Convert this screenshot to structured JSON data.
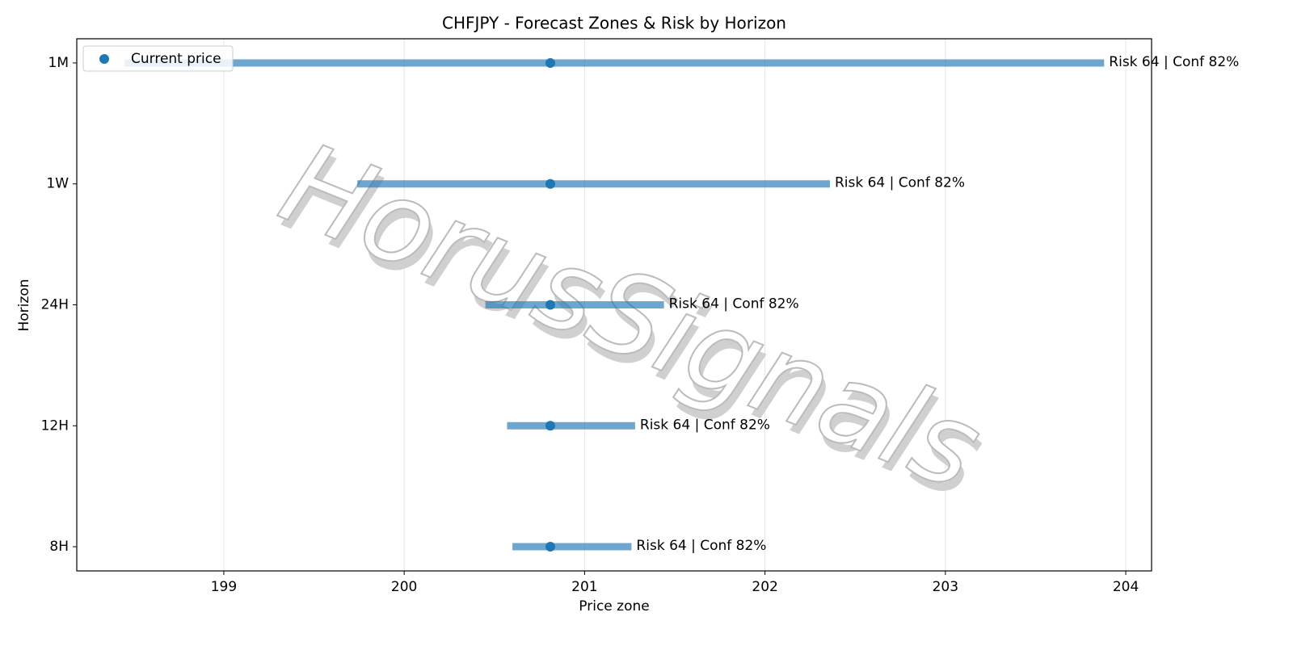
{
  "chart_data": {
    "type": "range",
    "title": "CHFJPY - Forecast Zones & Risk by Horizon",
    "xlabel": "Price zone",
    "ylabel": "Horizon",
    "categories": [
      "1M",
      "1W",
      "24H",
      "12H",
      "8H"
    ],
    "low": [
      198.45,
      199.74,
      200.45,
      200.57,
      200.6
    ],
    "high": [
      203.88,
      202.36,
      201.44,
      201.28,
      201.26
    ],
    "bar_color": "#1f77b4",
    "current": {
      "name": "Current price",
      "color": "#1f77b4",
      "values": [
        200.81,
        200.81,
        200.81,
        200.81,
        200.81
      ]
    },
    "annotations": [
      "Risk 64 | Conf 82%",
      "Risk 64 | Conf 82%",
      "Risk 64 | Conf 82%",
      "Risk 64 | Conf 82%",
      "Risk 64 | Conf 82%"
    ],
    "watermark": "HorusSignals",
    "xlim": [
      198.185,
      204.143
    ],
    "xticks": [
      199,
      200,
      201,
      202,
      203,
      204
    ],
    "grid": true,
    "legend": "upper left"
  }
}
